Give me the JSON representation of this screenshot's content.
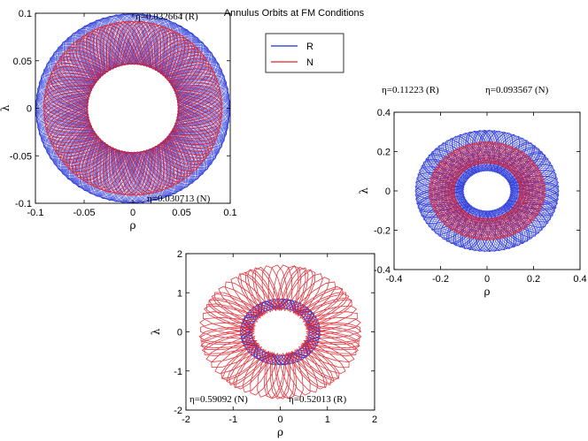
{
  "title": "Annulus Orbits at FM Conditions",
  "legend": {
    "placement": "top-center",
    "entries": [
      {
        "label": "R",
        "color": "#1f2fd6"
      },
      {
        "label": "N",
        "color": "#e0202a"
      }
    ]
  },
  "chart_data": [
    {
      "type": "line",
      "xlabel": "ρ",
      "ylabel": "λ",
      "xlim": [
        -0.1,
        0.1
      ],
      "ylim": [
        -0.1,
        0.1
      ],
      "xticks": [
        "-0.1",
        "-0.05",
        "0",
        "0.05",
        "0.1"
      ],
      "yticks": [
        "0.1",
        "0.05",
        "0",
        "-0.05",
        "-0.1"
      ],
      "annotations": [
        "η=0.032664 (R)",
        "η=0.030713 (N)"
      ],
      "series": [
        {
          "name": "R",
          "color": "#1f2fd6",
          "inner_radius": 0.046,
          "outer_radius": 0.1,
          "lobes": 6,
          "density": "dense"
        },
        {
          "name": "N",
          "color": "#e0202a",
          "inner_radius": 0.046,
          "outer_radius": 0.092,
          "lobes": 6,
          "density": "dense"
        }
      ]
    },
    {
      "type": "line",
      "xlabel": "ρ",
      "ylabel": "λ",
      "xlim": [
        -0.4,
        0.4
      ],
      "ylim": [
        -0.4,
        0.4
      ],
      "xticks": [
        "-0.4",
        "-0.2",
        "0",
        "0.2",
        "0.4"
      ],
      "yticks": [
        "0.4",
        "0.2",
        "0",
        "-0.2",
        "-0.4"
      ],
      "annotations": [
        "η=0.11223 (R)",
        "η=0.093567 (N)"
      ],
      "series": [
        {
          "name": "R",
          "color": "#1f2fd6",
          "inner_radius": 0.1,
          "outer_radius": 0.31,
          "lobes": 7,
          "density": "medium"
        },
        {
          "name": "N",
          "color": "#e0202a",
          "inner_radius": 0.14,
          "outer_radius": 0.25,
          "lobes": 7,
          "density": "medium"
        }
      ]
    },
    {
      "type": "line",
      "xlabel": "ρ",
      "ylabel": "λ",
      "xlim": [
        -2,
        2
      ],
      "ylim": [
        -2,
        2
      ],
      "xticks": [
        "-2",
        "-1",
        "0",
        "1",
        "2"
      ],
      "yticks": [
        "2",
        "1",
        "0",
        "-1",
        "-2"
      ],
      "annotations": [
        "η=0.59092 (N)",
        "η=0.52013 (R)"
      ],
      "series": [
        {
          "name": "R",
          "color": "#1f2fd6",
          "inner_radius": 0.6,
          "outer_radius": 0.85,
          "lobes": 9,
          "density": "sparse"
        },
        {
          "name": "N",
          "color": "#e0202a",
          "inner_radius": 0.55,
          "outer_radius": 1.72,
          "lobes": 9,
          "density": "sparse"
        }
      ]
    }
  ]
}
